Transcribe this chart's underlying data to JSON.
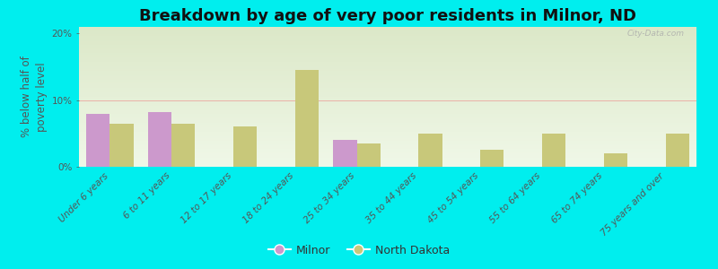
{
  "title": "Breakdown by age of very poor residents in Milnor, ND",
  "ylabel": "% below half of\npoverty level",
  "categories": [
    "Under 6 years",
    "6 to 11 years",
    "12 to 17 years",
    "18 to 24 years",
    "25 to 34 years",
    "35 to 44 years",
    "45 to 54 years",
    "55 to 64 years",
    "65 to 74 years",
    "75 years and over"
  ],
  "milnor_values": [
    8.0,
    8.2,
    0,
    0,
    4.0,
    0,
    0,
    0,
    0,
    0
  ],
  "nd_values": [
    6.5,
    6.5,
    6.0,
    14.5,
    3.5,
    5.0,
    2.5,
    5.0,
    2.0,
    5.0
  ],
  "milnor_color": "#cc99cc",
  "nd_color": "#c8c87a",
  "background_color": "#00eeee",
  "plot_bg_top": "#dce8c8",
  "plot_bg_bottom": "#f0f8e8",
  "ylim": [
    0,
    21
  ],
  "yticks": [
    0,
    10,
    20
  ],
  "ytick_labels": [
    "0%",
    "10%",
    "20%"
  ],
  "bar_width": 0.38,
  "title_fontsize": 13,
  "axis_fontsize": 8.5,
  "tick_fontsize": 7.5,
  "legend_labels": [
    "Milnor",
    "North Dakota"
  ],
  "watermark": "City-Data.com"
}
